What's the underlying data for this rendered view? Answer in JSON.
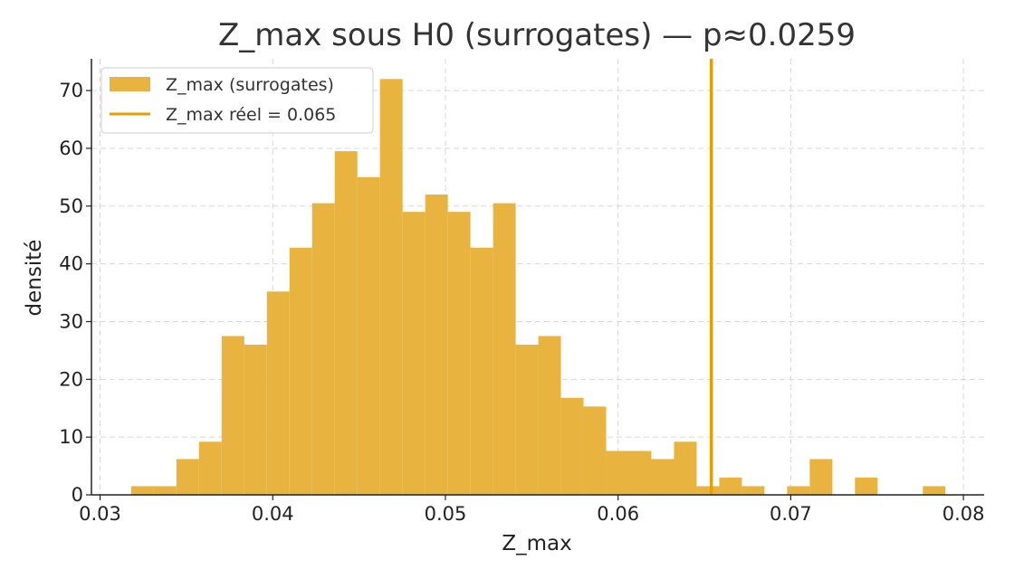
{
  "chart_data": {
    "type": "bar",
    "title": "Z_max sous H0 (surrogates) — p≈0.0259",
    "xlabel": "Z_max",
    "ylabel": "densité",
    "xlim": [
      0.0295,
      0.0812
    ],
    "ylim": [
      0,
      75.5
    ],
    "x_ticks": [
      0.03,
      0.04,
      0.05,
      0.06,
      0.07,
      0.08
    ],
    "x_tick_labels": [
      "0.03",
      "0.04",
      "0.05",
      "0.06",
      "0.07",
      "0.08"
    ],
    "y_ticks": [
      0,
      10,
      20,
      30,
      40,
      50,
      60,
      70
    ],
    "y_tick_labels": [
      "0",
      "10",
      "20",
      "30",
      "40",
      "50",
      "60",
      "70"
    ],
    "grid": true,
    "legend_position": "top-left",
    "bin_edges": [
      0.0318,
      0.03311,
      0.03442,
      0.03573,
      0.03704,
      0.03835,
      0.03966,
      0.04097,
      0.04228,
      0.04359,
      0.0449,
      0.04621,
      0.04752,
      0.04883,
      0.05014,
      0.05145,
      0.05276,
      0.05407,
      0.05538,
      0.05669,
      0.058,
      0.05931,
      0.06062,
      0.06193,
      0.06324,
      0.06455,
      0.06586,
      0.06717,
      0.06848,
      0.06979,
      0.0711,
      0.07241,
      0.07372,
      0.07503,
      0.07634,
      0.07765,
      0.07896
    ],
    "values": [
      1.5,
      1.5,
      6.2,
      9.2,
      27.5,
      26.0,
      35.2,
      42.8,
      50.5,
      59.5,
      55.0,
      72.0,
      49.0,
      52.0,
      49.0,
      42.8,
      50.5,
      26.0,
      27.5,
      16.8,
      15.3,
      7.6,
      7.6,
      6.2,
      9.2,
      1.5,
      3.0,
      1.5,
      0,
      1.5,
      6.2,
      0,
      3.0,
      0,
      0,
      1.5
    ],
    "series": [
      {
        "name": "Z_max (surrogates)",
        "color": "#E8B43F",
        "kind": "histogram"
      },
      {
        "name": "Z_max réel = 0.065",
        "color": "#E69F00",
        "kind": "vline",
        "x": 0.0654
      }
    ]
  }
}
